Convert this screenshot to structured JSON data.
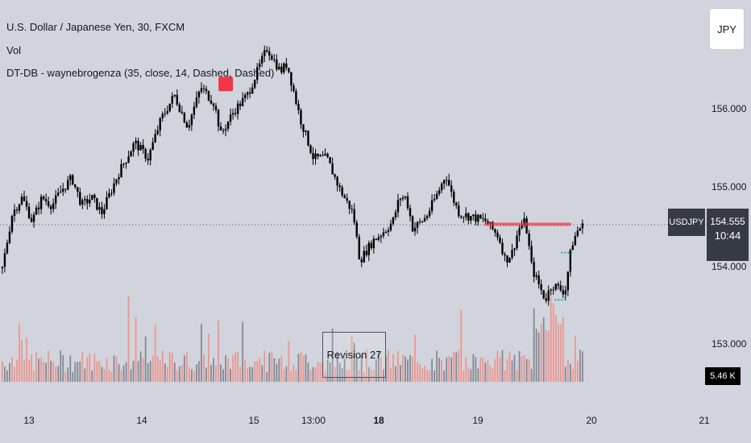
{
  "header": {
    "title": "U.S. Dollar / Japanese Yen, 30, FXCM",
    "volume_label": "Vol",
    "indicator_label": "DT-DB - waynebrogenza (35, close, 14, Dashed, Dashed)"
  },
  "currency_button": "JPY",
  "price_axis": {
    "ticks": [
      "156.000",
      "155.000",
      "154.000",
      "153.000"
    ]
  },
  "current": {
    "symbol": "USDJPY",
    "price": "154.555",
    "countdown": "10:44",
    "volume": "5.46 K"
  },
  "time_axis": {
    "ticks": [
      "13",
      "14",
      "15",
      "13:00",
      "18",
      "19",
      "20",
      "21"
    ]
  },
  "annotation": "Revision 27",
  "colors": {
    "background": "#d1d4dc",
    "candle": "#000000",
    "volume_up": "#787b86",
    "volume_down": "#f28b82",
    "marker": "#f23645",
    "target": "#22ab94"
  },
  "chart_data": {
    "type": "candlestick",
    "y_range": [
      152.6,
      157.0
    ],
    "close_path": [
      [
        0,
        154.0
      ],
      [
        1.5,
        154.7
      ],
      [
        3,
        154.9
      ],
      [
        4.5,
        154.6
      ],
      [
        6,
        154.9
      ],
      [
        7.5,
        154.8
      ],
      [
        9,
        155.0
      ],
      [
        10.5,
        155.15
      ],
      [
        12,
        154.8
      ],
      [
        13.5,
        154.9
      ],
      [
        15,
        154.7
      ],
      [
        17.5,
        155.2
      ],
      [
        20,
        155.6
      ],
      [
        22,
        155.4
      ],
      [
        24,
        155.9
      ],
      [
        26,
        156.2
      ],
      [
        28,
        155.8
      ],
      [
        30,
        156.3
      ],
      [
        32,
        156.1
      ],
      [
        33,
        155.7
      ],
      [
        35,
        156.0
      ],
      [
        37,
        156.2
      ],
      [
        39,
        156.6
      ],
      [
        40,
        156.8
      ],
      [
        42,
        156.5
      ],
      [
        43,
        156.6
      ],
      [
        45,
        155.9
      ],
      [
        47,
        155.4
      ],
      [
        49,
        155.4
      ],
      [
        51,
        155.0
      ],
      [
        53,
        154.7
      ],
      [
        54,
        154.1
      ],
      [
        56,
        154.35
      ],
      [
        58,
        154.5
      ],
      [
        59,
        154.6
      ],
      [
        60,
        154.9
      ],
      [
        61,
        154.9
      ],
      [
        62,
        154.5
      ],
      [
        64,
        154.65
      ],
      [
        66,
        155.0
      ],
      [
        67,
        155.2
      ],
      [
        68,
        154.9
      ],
      [
        69,
        154.7
      ],
      [
        71,
        154.65
      ],
      [
        73,
        154.6
      ],
      [
        75,
        154.4
      ],
      [
        76,
        154.1
      ],
      [
        77,
        154.2
      ],
      [
        78,
        154.5
      ],
      [
        79,
        154.6
      ],
      [
        80,
        154.0
      ],
      [
        82,
        153.6
      ],
      [
        83,
        153.8
      ],
      [
        85,
        153.7
      ],
      [
        86,
        154.3
      ],
      [
        87,
        154.5
      ],
      [
        88,
        154.55
      ]
    ],
    "patterns": [
      {
        "type": "double-top-marker",
        "x": 34,
        "price": 156.25
      },
      {
        "type": "resistance",
        "x_start": 73,
        "x_end": 86,
        "price": 154.55
      },
      {
        "type": "target",
        "x": 85.5,
        "price": 154.2
      },
      {
        "type": "target",
        "x": 84.5,
        "price": 153.6
      }
    ]
  }
}
